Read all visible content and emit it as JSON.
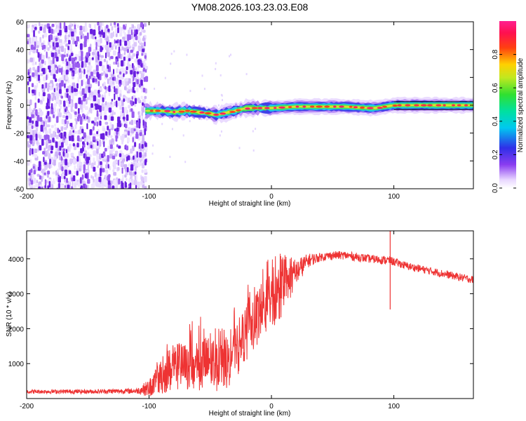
{
  "title": "YM08.2026.103.23.03.E08",
  "colors": {
    "snr_line": "#ee3333",
    "ridge": "#000000",
    "scatter": "#7b2be2"
  },
  "chart_data": [
    {
      "type": "heatmap",
      "name": "spectrogram",
      "xlabel": "Height of straight line (km)",
      "ylabel": "Frequency (Hz)",
      "xlim": [
        -200,
        165
      ],
      "ylim": [
        -60,
        60
      ],
      "xticks": [
        -200,
        -100,
        0,
        100
      ],
      "xtick_labels": [
        "-200",
        "-100",
        "0",
        "100"
      ],
      "yticks": [
        -60,
        -40,
        -20,
        0,
        20,
        40,
        60
      ],
      "ytick_labels": [
        "-60",
        "-40",
        "-20",
        "0",
        "20",
        "40",
        "60"
      ],
      "noise_region_x": [
        -200,
        -103
      ],
      "signal_ridge": {
        "x": [
          -103,
          -90,
          -80,
          -70,
          -60,
          -50,
          -45,
          -40,
          -30,
          -20,
          -10,
          0,
          20,
          40,
          60,
          80,
          85,
          100,
          120,
          140,
          165
        ],
        "freq": [
          -4,
          -4,
          -5,
          -4,
          -5,
          -6,
          -7,
          -6,
          -4,
          -2,
          -2,
          -2,
          -1,
          -1,
          -1,
          -2,
          -2,
          0,
          0,
          0,
          0
        ]
      },
      "colorbar": {
        "label": "Normalized spectral amplitude",
        "range": [
          0.0,
          1.0
        ],
        "ticks": [
          0.0,
          0.2,
          0.4,
          0.6,
          0.8
        ],
        "tick_labels": [
          "0.0",
          "0.2",
          "0.4",
          "0.6",
          "0.8"
        ]
      }
    },
    {
      "type": "line",
      "name": "snr",
      "xlabel": "Height of straight line (km)",
      "ylabel": "SNR (10 * v/v)",
      "xlim": [
        -200,
        165
      ],
      "ylim": [
        0,
        4800
      ],
      "xticks": [
        -200,
        -100,
        0,
        100
      ],
      "xtick_labels": [
        "-200",
        "-100",
        "0",
        "100"
      ],
      "yticks": [
        1000,
        2000,
        3000,
        4000
      ],
      "ytick_labels": [
        "1000",
        "2000",
        "3000",
        "4000"
      ],
      "envelope": {
        "x": [
          -200,
          -150,
          -110,
          -100,
          -90,
          -80,
          -70,
          -60,
          -50,
          -40,
          -30,
          -20,
          -10,
          0,
          10,
          20,
          30,
          40,
          50,
          60,
          80,
          97,
          110,
          130,
          150,
          165
        ],
        "mean": [
          200,
          200,
          220,
          300,
          600,
          900,
          900,
          1000,
          1000,
          900,
          1300,
          1800,
          2400,
          2700,
          3100,
          3600,
          3950,
          4050,
          4100,
          4100,
          4000,
          3950,
          3800,
          3650,
          3500,
          3400
        ],
        "spread": [
          60,
          60,
          80,
          250,
          500,
          700,
          700,
          800,
          800,
          700,
          800,
          900,
          900,
          800,
          700,
          400,
          200,
          120,
          120,
          120,
          120,
          120,
          110,
          110,
          110,
          110
        ]
      },
      "annotations": [
        {
          "x": 97,
          "y_min": 2550,
          "y_max": 4800,
          "label": ""
        }
      ]
    }
  ]
}
